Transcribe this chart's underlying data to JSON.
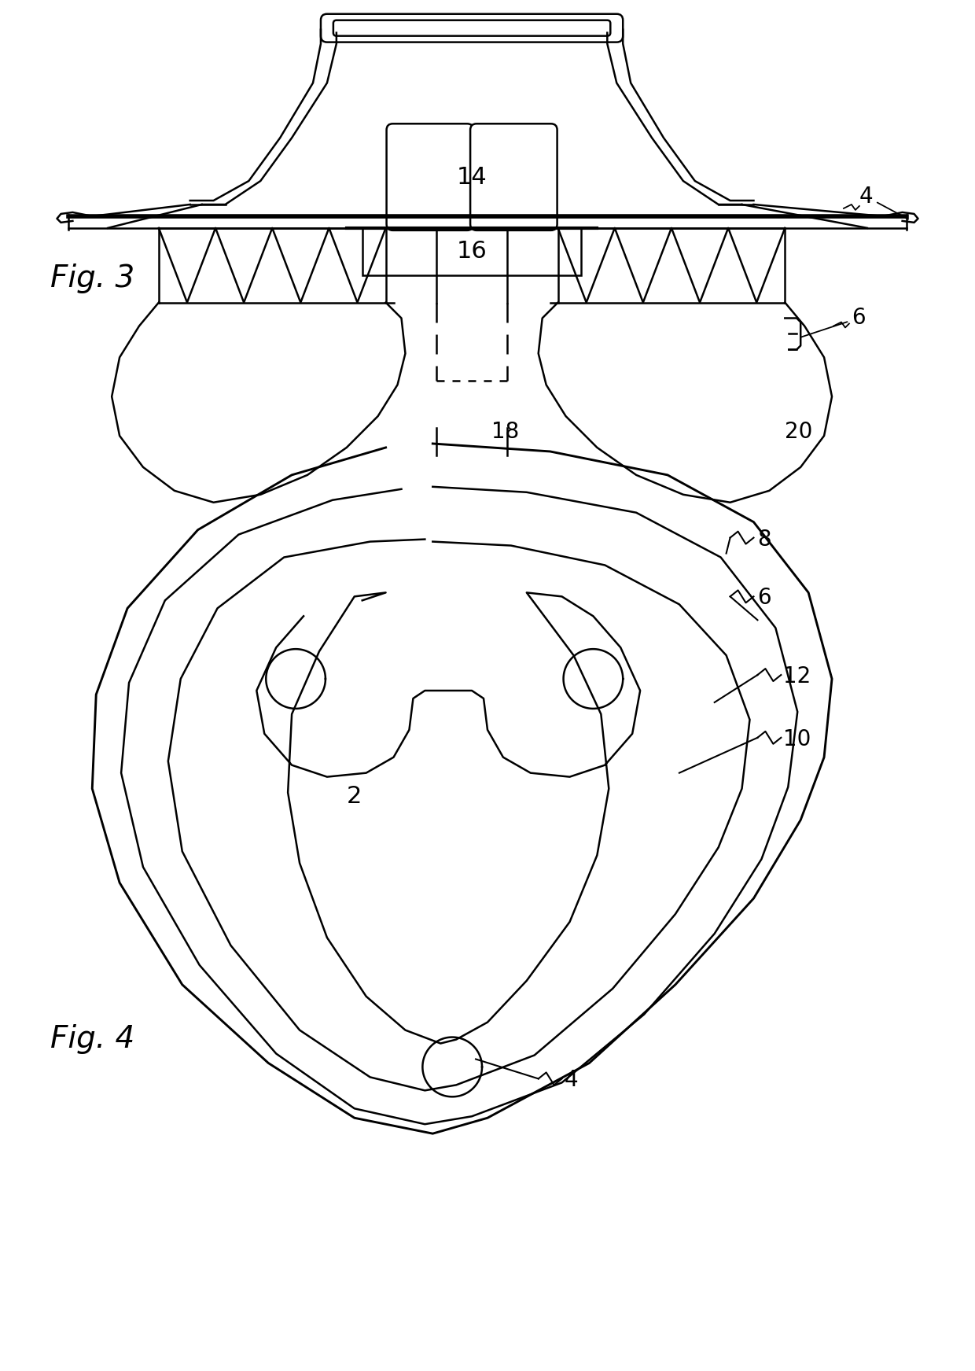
{
  "fig_width": 12.4,
  "fig_height": 17.43,
  "dpi": 100,
  "bg_color": "#ffffff",
  "line_color": "#000000",
  "lw": 1.8,
  "lw_thick": 4.0,
  "fig3_label": "Fig. 3",
  "fig4_label": "Fig. 4"
}
